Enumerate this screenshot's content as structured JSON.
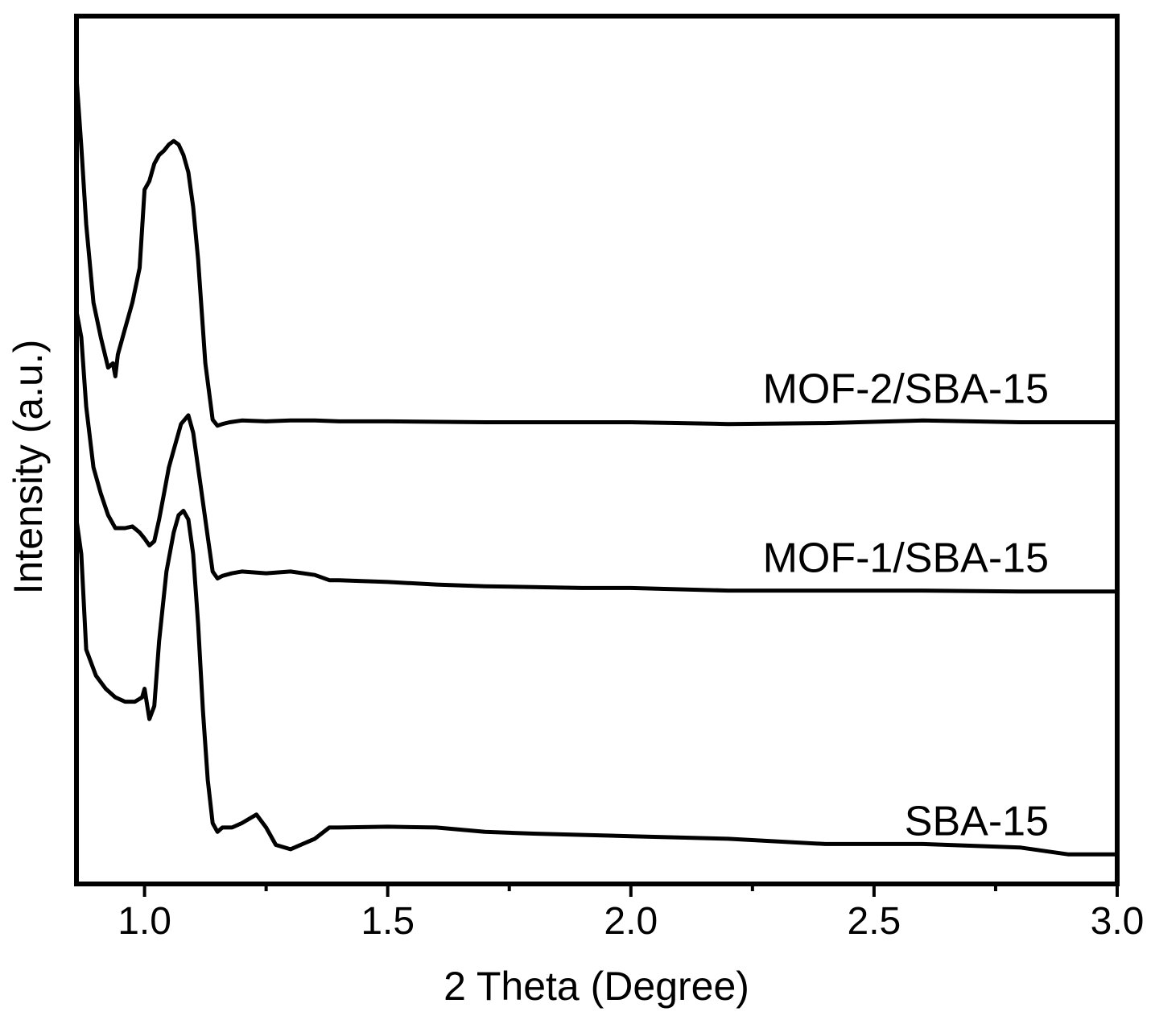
{
  "chart_data": {
    "type": "line",
    "xlabel": "2 Theta (Degree)",
    "ylabel": "Intensity (a.u.)",
    "xlim": [
      0.86,
      3.0
    ],
    "ylim": [
      0,
      1
    ],
    "xticks": [
      {
        "value": 1.0,
        "label": "1.0"
      },
      {
        "value": 1.5,
        "label": "1.5"
      },
      {
        "value": 2.0,
        "label": "2.0"
      },
      {
        "value": 2.5,
        "label": "2.5"
      },
      {
        "value": 3.0,
        "label": "3.0"
      }
    ],
    "xticks_minor": [
      1.25,
      1.75,
      2.25,
      2.75
    ],
    "yticks": [],
    "grid": false,
    "legend": "inline labels at right end of each curve",
    "series": [
      {
        "name": "MOF-2/SBA-15",
        "x": [
          0.86,
          0.87,
          0.88,
          0.895,
          0.91,
          0.925,
          0.935,
          0.94,
          0.945,
          0.96,
          0.975,
          0.99,
          1.0,
          1.01,
          1.02,
          1.03,
          1.04,
          1.05,
          1.06,
          1.07,
          1.08,
          1.09,
          1.1,
          1.11,
          1.125,
          1.14,
          1.15,
          1.16,
          1.175,
          1.2,
          1.25,
          1.3,
          1.35,
          1.4,
          1.5,
          1.7,
          1.9,
          2.0,
          2.2,
          2.4,
          2.6,
          2.8,
          3.0
        ],
        "y": [
          0.93,
          0.85,
          0.76,
          0.67,
          0.63,
          0.595,
          0.6,
          0.585,
          0.61,
          0.64,
          0.67,
          0.71,
          0.8,
          0.81,
          0.83,
          0.84,
          0.845,
          0.852,
          0.856,
          0.852,
          0.84,
          0.82,
          0.78,
          0.72,
          0.6,
          0.535,
          0.528,
          0.53,
          0.532,
          0.534,
          0.533,
          0.534,
          0.534,
          0.533,
          0.533,
          0.532,
          0.532,
          0.532,
          0.53,
          0.531,
          0.534,
          0.532,
          0.532
        ]
      },
      {
        "name": "MOF-1/SBA-15",
        "x": [
          0.86,
          0.87,
          0.88,
          0.895,
          0.91,
          0.925,
          0.94,
          0.96,
          0.975,
          0.99,
          1.0,
          1.01,
          1.02,
          1.03,
          1.04,
          1.05,
          1.06,
          1.075,
          1.09,
          1.1,
          1.115,
          1.13,
          1.14,
          1.15,
          1.16,
          1.18,
          1.2,
          1.25,
          1.3,
          1.35,
          1.38,
          1.4,
          1.5,
          1.6,
          1.7,
          1.8,
          1.9,
          2.0,
          2.2,
          2.4,
          2.6,
          2.8,
          3.0
        ],
        "y": [
          0.66,
          0.63,
          0.55,
          0.48,
          0.45,
          0.425,
          0.41,
          0.41,
          0.412,
          0.405,
          0.398,
          0.39,
          0.395,
          0.42,
          0.45,
          0.48,
          0.5,
          0.53,
          0.54,
          0.52,
          0.46,
          0.4,
          0.36,
          0.352,
          0.355,
          0.358,
          0.36,
          0.358,
          0.36,
          0.356,
          0.35,
          0.35,
          0.348,
          0.345,
          0.343,
          0.342,
          0.341,
          0.341,
          0.338,
          0.338,
          0.338,
          0.337,
          0.337
        ]
      },
      {
        "name": "SBA-15",
        "x": [
          0.86,
          0.87,
          0.88,
          0.9,
          0.92,
          0.94,
          0.96,
          0.98,
          0.995,
          1.0,
          1.01,
          1.02,
          1.03,
          1.045,
          1.06,
          1.07,
          1.08,
          1.09,
          1.1,
          1.11,
          1.12,
          1.13,
          1.14,
          1.15,
          1.16,
          1.18,
          1.2,
          1.23,
          1.25,
          1.27,
          1.3,
          1.35,
          1.38,
          1.4,
          1.5,
          1.6,
          1.7,
          1.8,
          2.0,
          2.2,
          2.4,
          2.6,
          2.8,
          2.9,
          3.0
        ],
        "y": [
          0.42,
          0.38,
          0.27,
          0.24,
          0.225,
          0.215,
          0.21,
          0.21,
          0.215,
          0.225,
          0.19,
          0.205,
          0.28,
          0.36,
          0.405,
          0.425,
          0.43,
          0.42,
          0.38,
          0.3,
          0.2,
          0.12,
          0.07,
          0.06,
          0.065,
          0.065,
          0.07,
          0.08,
          0.065,
          0.045,
          0.04,
          0.052,
          0.065,
          0.065,
          0.066,
          0.065,
          0.06,
          0.058,
          0.055,
          0.052,
          0.046,
          0.046,
          0.042,
          0.034,
          0.034
        ]
      }
    ]
  }
}
